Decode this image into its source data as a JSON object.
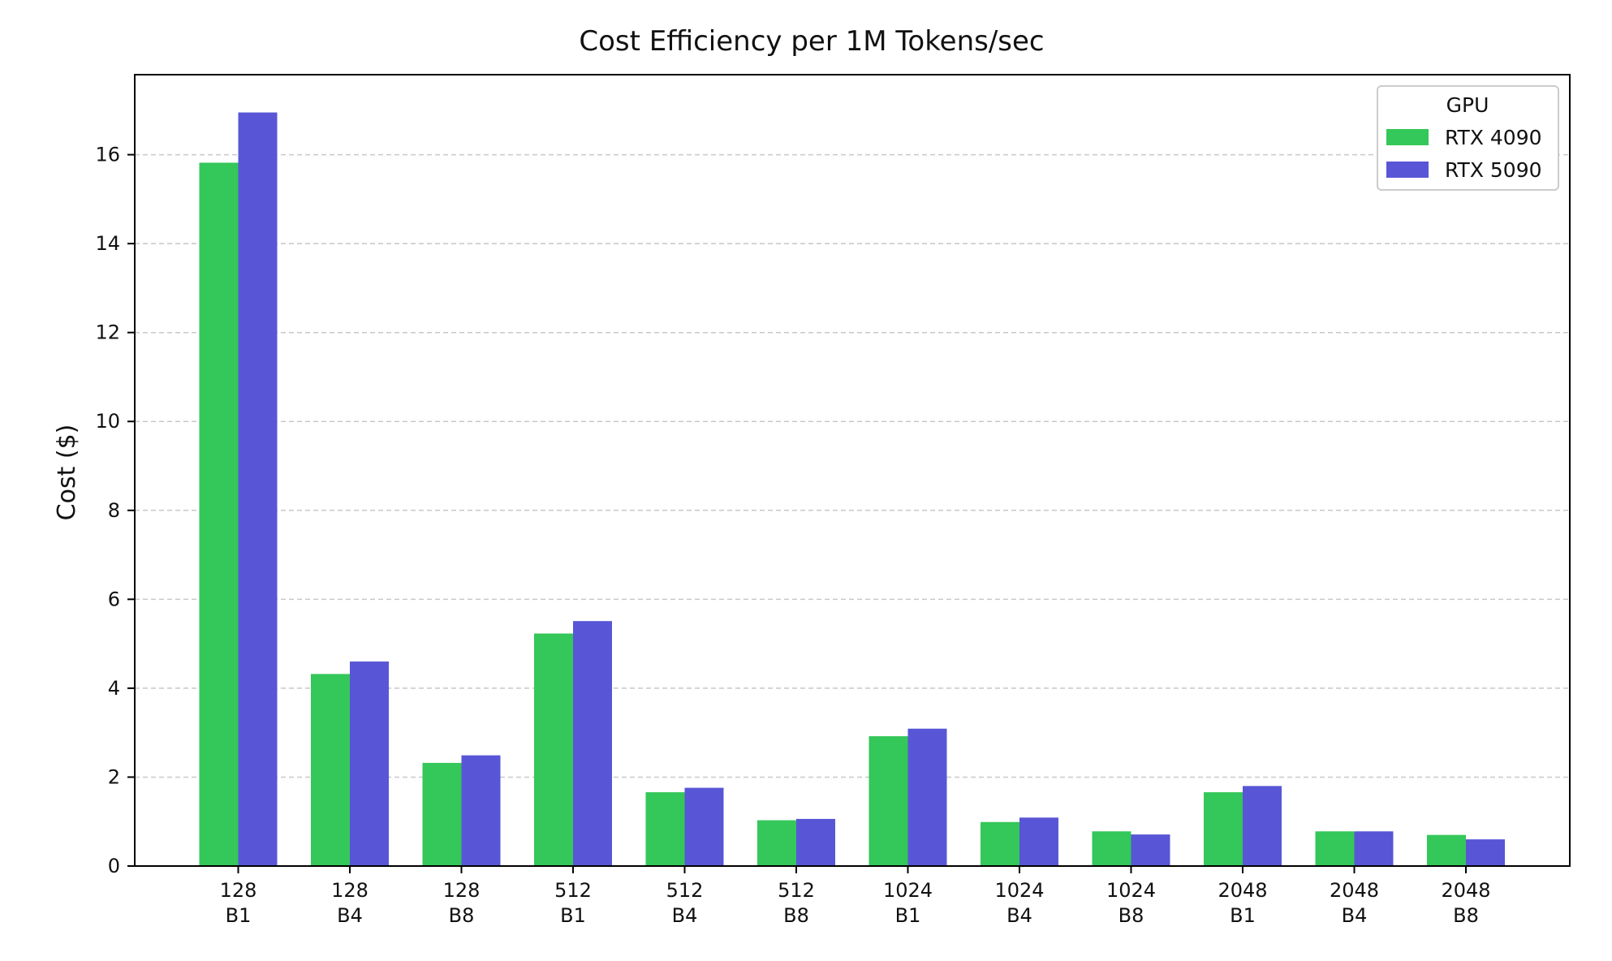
{
  "chart_data": {
    "type": "bar",
    "title": "Cost Efficiency per 1M Tokens/sec",
    "xlabel": "",
    "ylabel": "Cost ($)",
    "categories": [
      "128\nB1",
      "128\nB4",
      "128\nB8",
      "512\nB1",
      "512\nB4",
      "512\nB8",
      "1024\nB1",
      "1024\nB4",
      "1024\nB8",
      "2048\nB1",
      "2048\nB4",
      "2048\nB8"
    ],
    "series": [
      {
        "name": "RTX 4090",
        "color": "#34c759",
        "values": [
          15.82,
          4.32,
          2.32,
          5.23,
          1.66,
          1.03,
          2.92,
          0.99,
          0.78,
          1.66,
          0.78,
          0.7
        ]
      },
      {
        "name": "RTX 5090",
        "color": "#5856d6",
        "values": [
          16.95,
          4.6,
          2.49,
          5.51,
          1.76,
          1.06,
          3.09,
          1.09,
          0.71,
          1.8,
          0.78,
          0.6
        ]
      }
    ],
    "ylim": [
      0,
      17.8
    ],
    "yticks": [
      0,
      2,
      4,
      6,
      8,
      10,
      12,
      14,
      16
    ],
    "grid": true,
    "legend": {
      "title": "GPU",
      "position": "top-right"
    }
  }
}
